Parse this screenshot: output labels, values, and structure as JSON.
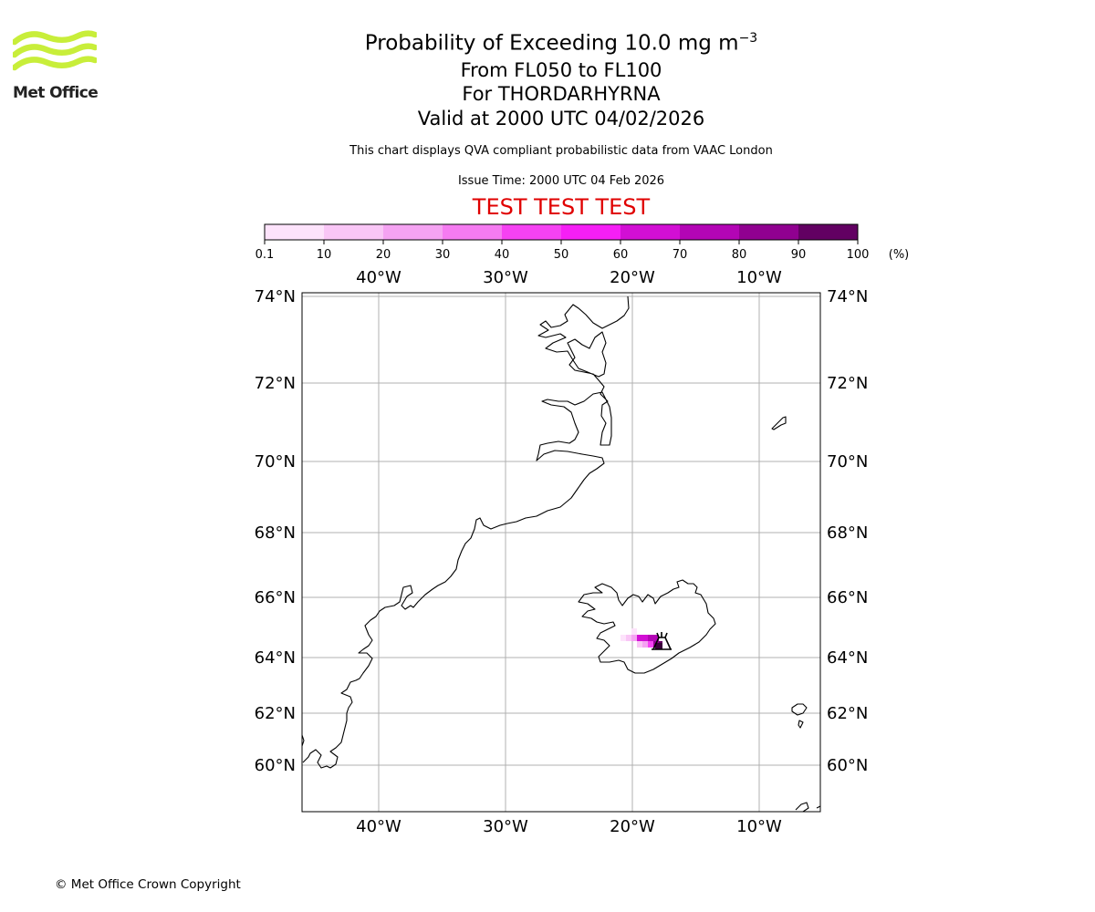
{
  "header": {
    "title_main": "Probability of Exceeding 10.0 mg m",
    "title_sup": "−3",
    "levels": "From FL050 to FL100",
    "volcano": "For THORDARHYRNA",
    "valid": "Valid at 2000 UTC 04/02/2026",
    "note": "This chart displays QVA compliant probabilistic data from VAAC London",
    "issue": "Issue Time: 2000 UTC 04 Feb 2026",
    "test_banner": "TEST TEST TEST"
  },
  "logo": {
    "text": "Met Office",
    "color": "#c8ee3a"
  },
  "colorbar": {
    "unit": "(%)",
    "ticks": [
      "0.1",
      "10",
      "20",
      "30",
      "40",
      "50",
      "60",
      "70",
      "80",
      "90",
      "100"
    ],
    "colors": [
      "#fde3fb",
      "#f9c6f6",
      "#f5a3f2",
      "#f57bf1",
      "#f542f2",
      "#f51ff5",
      "#d20fd4",
      "#b305b5",
      "#900090",
      "#620062"
    ]
  },
  "map": {
    "lon_labels": [
      "40°W",
      "30°W",
      "20°W",
      "10°W"
    ],
    "lat_labels": [
      "74°N",
      "72°N",
      "70°N",
      "68°N",
      "66°N",
      "64°N",
      "62°N",
      "60°N"
    ],
    "grid_color": "#b0b0b0"
  },
  "footer": {
    "copyright": "© Met Office Crown Copyright"
  }
}
